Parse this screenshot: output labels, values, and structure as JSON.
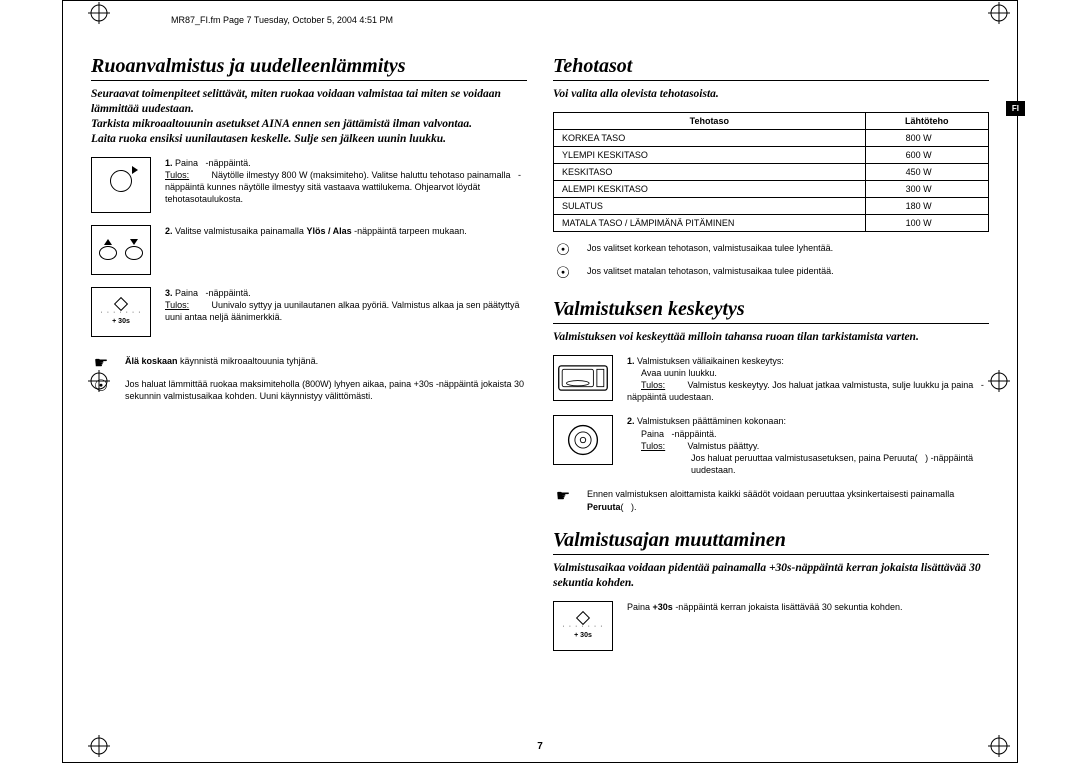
{
  "headerMeta": "MR87_FI.fm  Page 7  Tuesday, October 5, 2004  4:51 PM",
  "sideTab": "FI",
  "pageNumber": "7",
  "left": {
    "title": "Ruoanvalmistus ja uudelleenlämmitys",
    "intro": "Seuraavat toimenpiteet selittävät, miten ruokaa voidaan valmistaa tai miten se voidaan lämmittää uudestaan.\nTarkista mikroaaltouunin asetukset AINA ennen sen jättämistä ilman valvontaa.\nLaita ruoka ensiksi uunilautasen keskelle. Sulje sen jälkeen uunin luukku.",
    "steps": [
      {
        "num": "1.",
        "line1": "Paina   -näppäintä.",
        "tulosLabel": "Tulos:",
        "tulosText": "Näytölle ilmestyy 800 W (maksimiteho). Valitse haluttu tehotaso painamalla   -näppäintä kunnes näytölle ilmestyy sitä vastaava wattilukema. Ohjearvot löydät tehotasotaulukosta."
      },
      {
        "num": "2.",
        "line1f": "Valitse valmistusaika painamalla ",
        "line1b": "Ylös / Alas",
        "line1e": " -näppäintä tarpeen mukaan."
      },
      {
        "num": "3.",
        "line1": "Paina   -näppäintä.",
        "tulosLabel": "Tulos:",
        "tulosText": "Uunivalo syttyy ja uunilautanen alkaa pyöriä. Valmistus alkaa ja sen päätyttyä uuni antaa neljä äänimerkkiä."
      }
    ],
    "notes": [
      {
        "sym": "☛",
        "boldPrefix": "Älä koskaan",
        "text": " käynnistä mikroaaltouunia tyhjänä."
      },
      {
        "sym": "☉",
        "text": "Jos haluat lämmittää ruokaa maksimiteholla (800W) lyhyen aikaa, paina +30s -näppäintä jokaista 30 sekunnin valmistusaikaa kohden. Uuni käynnistyy välittömästi."
      }
    ]
  },
  "right": {
    "s1": {
      "title": "Tehotasot",
      "intro": "Voi valita alla olevista tehotasoista.",
      "tableHeaders": [
        "Tehotaso",
        "Lähtöteho"
      ],
      "rows": [
        [
          "KORKEA TASO",
          "800 W"
        ],
        [
          "YLEMPI KESKITASO",
          "600 W"
        ],
        [
          "KESKITASO",
          "450 W"
        ],
        [
          "ALEMPI KESKITASO",
          "300 W"
        ],
        [
          "SULATUS",
          "180 W"
        ],
        [
          "MATALA TASO / LÄMPIMÄNÄ PITÄMINEN",
          "100 W"
        ]
      ],
      "notes": [
        {
          "sym": "☉",
          "text": "Jos valitset korkean tehotason, valmistusaikaa tulee lyhentää."
        },
        {
          "sym": "☉",
          "text": "Jos valitset matalan tehotason, valmistusaikaa tulee pidentää."
        }
      ]
    },
    "s2": {
      "title": "Valmistuksen keskeytys",
      "intro": "Valmistuksen voi keskeyttää milloin tahansa ruoan tilan tarkistamista varten.",
      "steps": [
        {
          "num": "1.",
          "line1": "Valmistuksen väliaikainen keskeytys:",
          "line2": "Avaa uunin luukku.",
          "tulosLabel": "Tulos:",
          "tulosText": "Valmistus keskeytyy. Jos haluat jatkaa valmistusta, sulje luukku ja paina   -näppäintä uudestaan."
        },
        {
          "num": "2.",
          "line1": "Valmistuksen päättäminen kokonaan:",
          "line2": "Paina   -näppäintä.",
          "tulosLabel": "Tulos:",
          "tulosText": "Valmistus päättyy.",
          "extra": "Jos haluat peruuttaa valmistusasetuksen, paina Peruuta(   ) -näppäintä uudestaan."
        }
      ],
      "note": {
        "sym": "☛",
        "textA": "Ennen valmistuksen aloittamista kaikki säädöt voidaan peruuttaa yksinkertaisesti painamalla ",
        "textB": "Peruuta",
        "textC": "(   )."
      }
    },
    "s3": {
      "title": "Valmistusajan muuttaminen",
      "intro": "Valmistusaikaa voidaan pidentää painamalla +30s-näppäintä kerran jokaista lisättävää 30 sekuntia kohden.",
      "stepA": "Paina ",
      "stepB": "+30s",
      "stepC": " -näppäintä kerran jokaista lisättävää 30 sekuntia kohden."
    }
  }
}
